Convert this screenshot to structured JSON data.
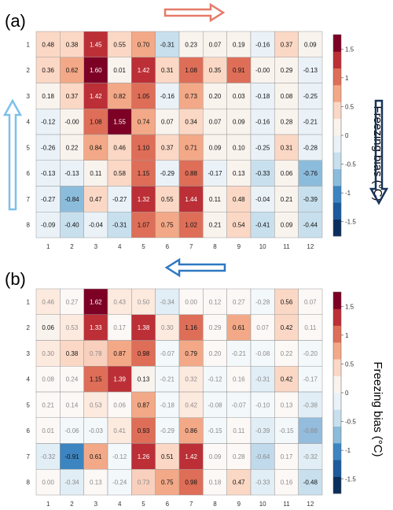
{
  "colorbar": {
    "label": "Freezing bias (°C)",
    "ticks": [
      "1.5",
      "1",
      "0.5",
      "0",
      "-0.5",
      "-1",
      "-1.5"
    ],
    "tick_values": [
      1.5,
      1,
      0.5,
      0,
      -0.5,
      -1,
      -1.5
    ],
    "range": [
      -1.75,
      1.75
    ],
    "colors": [
      "#0b2f5c",
      "#1b5a9c",
      "#3d85c0",
      "#8cbcdc",
      "#c8e0ee",
      "#eaf2f8",
      "#f9f3ee",
      "#fbd8c5",
      "#f3a987",
      "#de6e58",
      "#bc2f36",
      "#7d0025"
    ]
  },
  "arrows": {
    "a_top": {
      "direction": "right",
      "color": "#e57a68"
    },
    "a_left": {
      "direction": "up",
      "color": "#7ec0ea"
    },
    "a_right": {
      "direction": "down",
      "color": "#17335a"
    },
    "a_bottom": {
      "direction": "left",
      "color": "#2e78c2"
    }
  },
  "chart_data": [
    {
      "type": "heatmap",
      "panel_label": "(a)",
      "x_ticks": [
        "1",
        "2",
        "3",
        "4",
        "5",
        "6",
        "7",
        "8",
        "9",
        "10",
        "11",
        "12"
      ],
      "y_ticks": [
        "1",
        "2",
        "3",
        "4",
        "5",
        "6",
        "7",
        "8"
      ],
      "values": [
        [
          0.48,
          0.38,
          1.45,
          0.55,
          0.7,
          -0.31,
          0.23,
          0.07,
          0.19,
          -0.16,
          0.37,
          0.09
        ],
        [
          0.36,
          0.62,
          1.6,
          0.01,
          1.42,
          0.31,
          1.08,
          0.35,
          0.91,
          -0.0,
          0.29,
          -0.13
        ],
        [
          0.18,
          0.37,
          1.42,
          0.82,
          1.05,
          -0.16,
          0.73,
          0.2,
          0.03,
          -0.18,
          0.08,
          -0.25
        ],
        [
          -0.12,
          -0.0,
          1.08,
          1.55,
          0.74,
          0.07,
          0.34,
          0.07,
          0.09,
          -0.16,
          0.28,
          -0.21
        ],
        [
          -0.26,
          0.22,
          0.84,
          0.46,
          1.1,
          0.37,
          0.71,
          0.09,
          0.1,
          -0.25,
          0.31,
          -0.28
        ],
        [
          -0.13,
          -0.13,
          0.11,
          0.58,
          1.15,
          -0.29,
          0.88,
          -0.17,
          0.13,
          -0.33,
          0.06,
          -0.76
        ],
        [
          -0.27,
          -0.84,
          0.47,
          -0.27,
          1.32,
          0.55,
          1.44,
          0.11,
          0.48,
          -0.04,
          0.21,
          -0.39
        ],
        [
          -0.09,
          -0.4,
          -0.04,
          -0.31,
          1.07,
          0.75,
          1.02,
          0.21,
          0.54,
          -0.41,
          0.09,
          -0.44
        ]
      ],
      "labels": [
        [
          "0.48",
          "0.38",
          "1.45",
          "0.55",
          "0.70",
          "-0.31",
          "0.23",
          "0.07",
          "0.19",
          "-0.16",
          "0.37",
          "0.09"
        ],
        [
          "0.36",
          "0.62",
          "1.60",
          "0.01",
          "1.42",
          "0.31",
          "1.08",
          "0.35",
          "0.91",
          "-0.00",
          "0.29",
          "-0.13"
        ],
        [
          "0.18",
          "0.37",
          "1.42",
          "0.82",
          "1.05",
          "-0.16",
          "0.73",
          "0.20",
          "0.03",
          "-0.18",
          "0.08",
          "-0.25"
        ],
        [
          "-0.12",
          "-0.00",
          "1.08",
          "1.55",
          "0.74",
          "0.07",
          "0.34",
          "0.07",
          "0.09",
          "-0.16",
          "0.28",
          "-0.21"
        ],
        [
          "-0.26",
          "0.22",
          "0.84",
          "0.46",
          "1.10",
          "0.37",
          "0.71",
          "0.09",
          "0.10",
          "-0.25",
          "0.31",
          "-0.28"
        ],
        [
          "-0.13",
          "-0.13",
          "0.11",
          "0.58",
          "1.15",
          "-0.29",
          "0.88",
          "-0.17",
          "0.13",
          "-0.33",
          "0.06",
          "-0.76"
        ],
        [
          "-0.27",
          "-0.84",
          "0.47",
          "-0.27",
          "1.32",
          "0.55",
          "1.44",
          "0.11",
          "0.48",
          "-0.04",
          "0.21",
          "-0.39"
        ],
        [
          "-0.09",
          "-0.40",
          "-0.04",
          "-0.31",
          "1.07",
          "0.75",
          "1.02",
          "0.21",
          "0.54",
          "-0.41",
          "0.09",
          "-0.44"
        ]
      ]
    },
    {
      "type": "heatmap",
      "panel_label": "(b)",
      "x_ticks": [
        "1",
        "2",
        "3",
        "4",
        "5",
        "6",
        "7",
        "8",
        "9",
        "10",
        "11",
        "12"
      ],
      "y_ticks": [
        "1",
        "2",
        "3",
        "4",
        "5",
        "6",
        "7",
        "8"
      ],
      "values": [
        [
          0.46,
          0.27,
          1.62,
          0.43,
          0.5,
          -0.34,
          0.0,
          0.12,
          0.27,
          -0.28,
          0.56,
          0.07
        ],
        [
          0.06,
          0.53,
          1.33,
          0.17,
          1.38,
          0.3,
          1.16,
          0.29,
          0.61,
          0.07,
          0.42,
          0.11
        ],
        [
          0.3,
          0.38,
          0.78,
          0.87,
          0.98,
          -0.07,
          0.79,
          0.2,
          -0.21,
          -0.08,
          0.22,
          -0.2
        ],
        [
          0.08,
          0.24,
          1.15,
          1.39,
          0.13,
          -0.21,
          0.32,
          -0.12,
          0.16,
          -0.31,
          0.42,
          -0.17
        ],
        [
          0.21,
          0.14,
          0.53,
          0.06,
          0.87,
          -0.18,
          0.42,
          -0.08,
          -0.07,
          -0.1,
          0.13,
          -0.38
        ],
        [
          0.01,
          -0.06,
          -0.03,
          0.41,
          0.93,
          -0.29,
          0.86,
          -0.15,
          0.11,
          -0.39,
          -0.15,
          -0.88
        ],
        [
          -0.32,
          -0.91,
          0.61,
          -0.12,
          1.26,
          0.51,
          1.42,
          0.09,
          0.28,
          -0.64,
          0.17,
          -0.32
        ],
        [
          0.0,
          -0.34,
          0.13,
          -0.24,
          0.73,
          0.75,
          0.98,
          0.18,
          0.47,
          -0.33,
          0.16,
          -0.48
        ]
      ],
      "labels": [
        [
          "0.46",
          "0.27",
          "1.62",
          "0.43",
          "0.50",
          "-0.34",
          "0.00",
          "0.12",
          "0.27",
          "-0.28",
          "0.56",
          "0.07"
        ],
        [
          "0.06",
          "0.53",
          "1.33",
          "0.17",
          "1.38",
          "0.30",
          "1.16",
          "0.29",
          "0.61",
          "0.07",
          "0.42",
          "0.11"
        ],
        [
          "0.30",
          "0.38",
          "0.78",
          "0.87",
          "0.98",
          "-0.07",
          "0.79",
          "0.20",
          "-0.21",
          "-0.08",
          "0.22",
          "-0.20"
        ],
        [
          "0.08",
          "0.24",
          "1.15",
          "1.39",
          "0.13",
          "-0.21",
          "0.32",
          "-0.12",
          "0.16",
          "-0.31",
          "0.42",
          "-0.17"
        ],
        [
          "0.21",
          "0.14",
          "0.53",
          "0.06",
          "0.87",
          "-0.18",
          "0.42",
          "-0.08",
          "-0.07",
          "-0.10",
          "0.13",
          "-0.38"
        ],
        [
          "0.01",
          "-0.06",
          "-0.03",
          "0.41",
          "0.93",
          "-0.29",
          "0.86",
          "-0.15",
          "0.11",
          "-0.39",
          "-0.15",
          "-0.88"
        ],
        [
          "-0.32",
          "-0.91",
          "0.61",
          "-0.12",
          "1.26",
          "0.51",
          "1.42",
          "0.09",
          "0.28",
          "-0.64",
          "0.17",
          "-0.32"
        ],
        [
          "0.00",
          "-0.34",
          "0.13",
          "-0.24",
          "0.73",
          "0.75",
          "0.98",
          "0.18",
          "0.47",
          "-0.33",
          "0.16",
          "-0.48"
        ]
      ],
      "emphasized_cells": [
        [
          0,
          2
        ],
        [
          0,
          10
        ],
        [
          1,
          0
        ],
        [
          1,
          2
        ],
        [
          1,
          4
        ],
        [
          1,
          6
        ],
        [
          1,
          8
        ],
        [
          1,
          10
        ],
        [
          2,
          1
        ],
        [
          2,
          3
        ],
        [
          2,
          4
        ],
        [
          2,
          6
        ],
        [
          3,
          2
        ],
        [
          3,
          3
        ],
        [
          3,
          4
        ],
        [
          3,
          10
        ],
        [
          4,
          4
        ],
        [
          5,
          4
        ],
        [
          5,
          6
        ],
        [
          6,
          1
        ],
        [
          6,
          2
        ],
        [
          6,
          4
        ],
        [
          6,
          5
        ],
        [
          6,
          6
        ],
        [
          7,
          5
        ],
        [
          7,
          6
        ],
        [
          7,
          8
        ],
        [
          7,
          11
        ]
      ]
    }
  ]
}
